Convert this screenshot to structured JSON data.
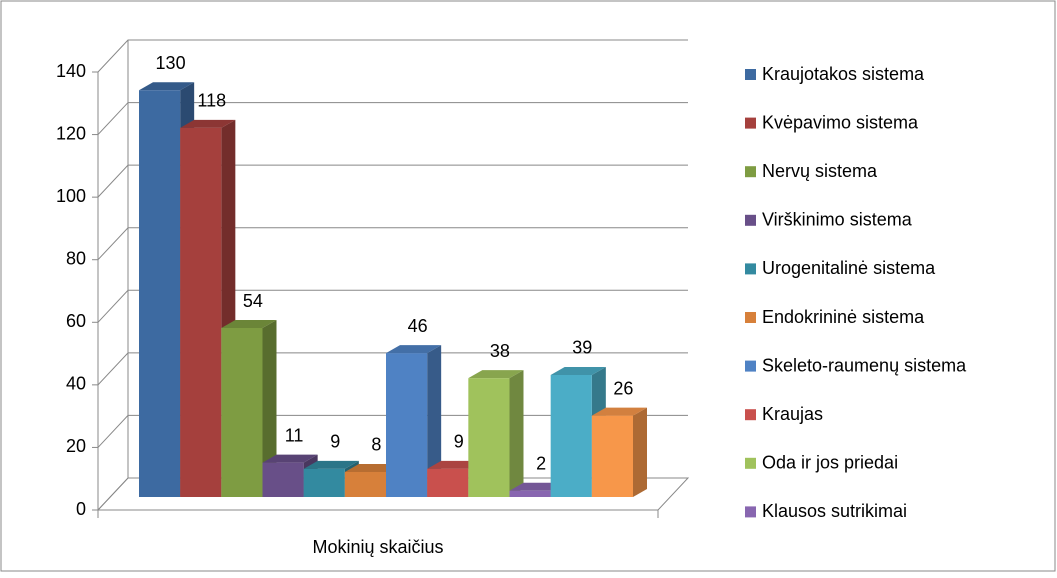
{
  "chart_data": {
    "type": "bar3d",
    "categories": [
      "Mokinių skaičius"
    ],
    "series": [
      {
        "name": "Kraujotakos sistema",
        "color": "#3d6aa1",
        "values": [
          130
        ]
      },
      {
        "name": "Kvėpavimo sistema",
        "color": "#a5403d",
        "values": [
          118
        ]
      },
      {
        "name": "Nervų sistema",
        "color": "#7e9c42",
        "values": [
          54
        ]
      },
      {
        "name": "Virškinimo sistema",
        "color": "#684f88",
        "values": [
          11
        ]
      },
      {
        "name": "Urogenitalinė sistema",
        "color": "#338aa0",
        "values": [
          9
        ]
      },
      {
        "name": "Endokrininė sistema",
        "color": "#d7803a",
        "values": [
          8
        ]
      },
      {
        "name": "Skeleto-raumenų sistema",
        "color": "#4f82c4",
        "values": [
          46
        ]
      },
      {
        "name": "Kraujas",
        "color": "#c9504d",
        "values": [
          9
        ]
      },
      {
        "name": "Oda ir jos priedai",
        "color": "#a0c25c",
        "values": [
          38
        ]
      },
      {
        "name": "Klausos sutrikimai",
        "color": "#8866b0",
        "values": [
          2
        ]
      },
      {
        "color": "#4badc7",
        "values": [
          39
        ]
      },
      {
        "color": "#f7974a",
        "values": [
          26
        ]
      }
    ],
    "ylim": [
      0,
      140
    ],
    "yticks": [
      0,
      20,
      40,
      60,
      80,
      100,
      120,
      140
    ],
    "grid": true
  }
}
